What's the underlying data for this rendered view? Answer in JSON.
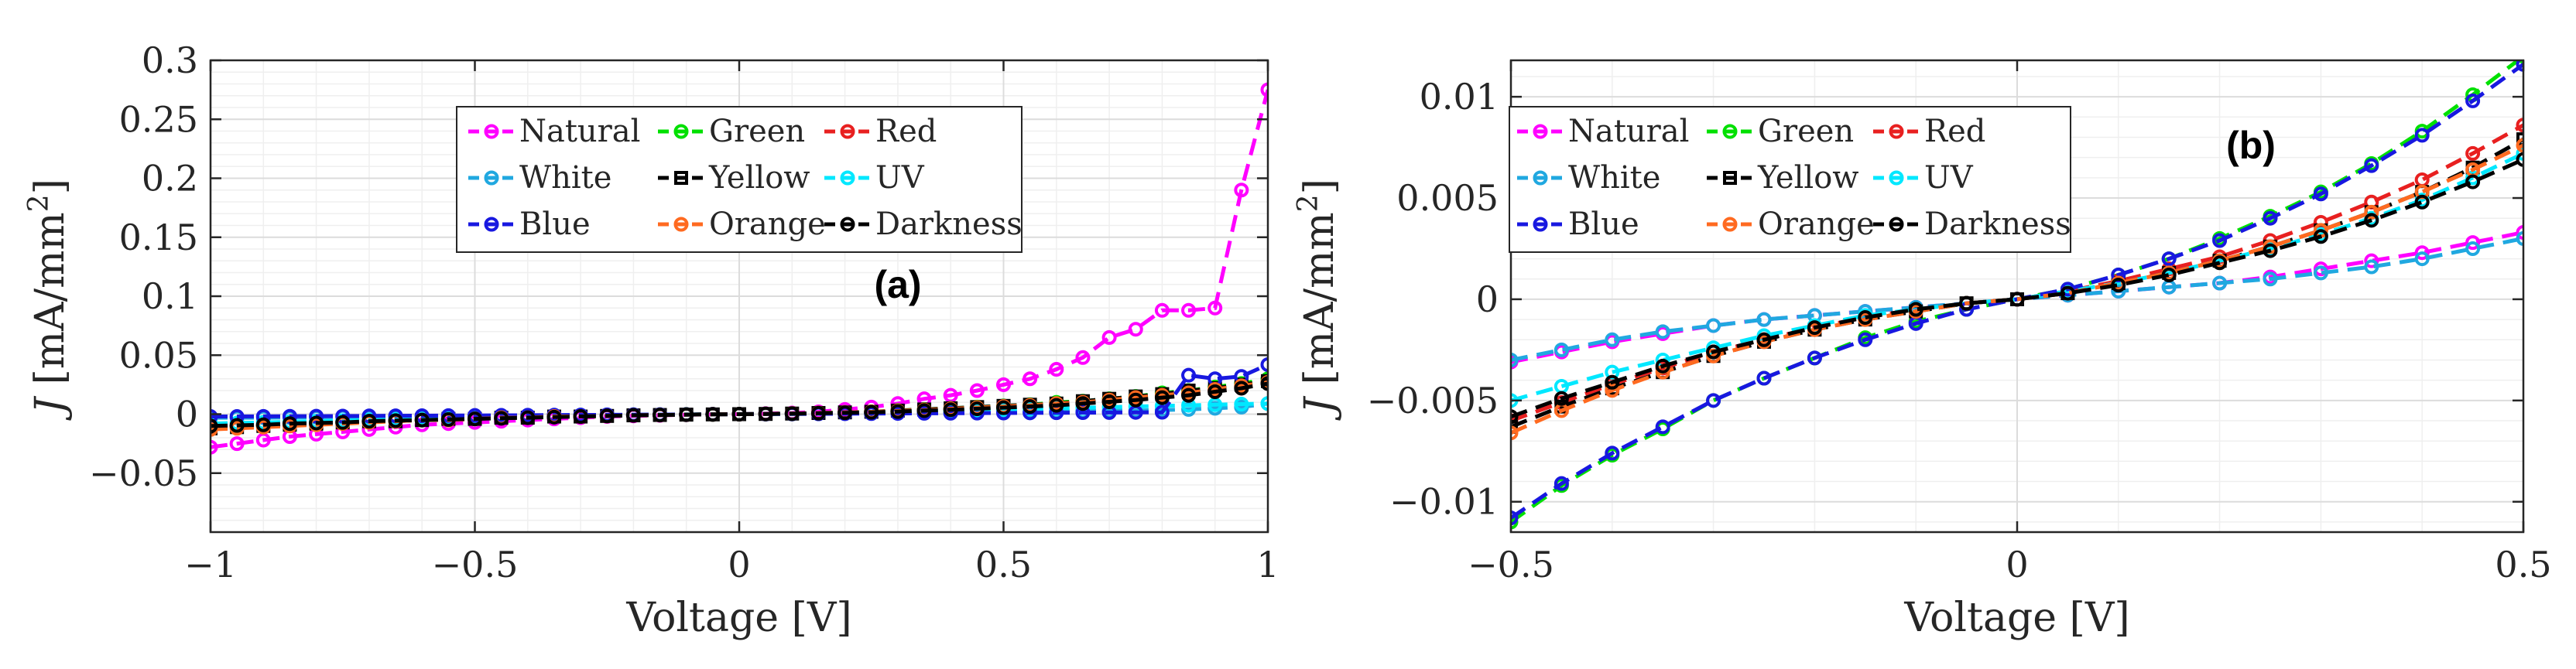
{
  "chart_data": [
    {
      "type": "line",
      "panel_label": "(a)",
      "xlabel": "Voltage [V]",
      "ylabel_italic": "J",
      "ylabel_unit": "[mA/mm",
      "ylabel_sup": "2",
      "ylabel_close": "]",
      "xlim": [
        -1,
        1
      ],
      "ylim": [
        -0.1,
        0.3
      ],
      "xticks": [
        -1,
        -0.5,
        0,
        0.5,
        1
      ],
      "xtick_labels": [
        "−1",
        "−0.5",
        "0",
        "0.5",
        "1"
      ],
      "yticks": [
        -0.05,
        0,
        0.05,
        0.1,
        0.15,
        0.2,
        0.25,
        0.3
      ],
      "ytick_labels": [
        "−0.05",
        "0",
        "0.05",
        "0.1",
        "0.15",
        "0.2",
        "0.25",
        "0.3"
      ],
      "grid": true,
      "legend_position": "top-center",
      "x": [
        -1,
        -0.95,
        -0.9,
        -0.85,
        -0.8,
        -0.75,
        -0.7,
        -0.65,
        -0.6,
        -0.55,
        -0.5,
        -0.45,
        -0.4,
        -0.35,
        -0.3,
        -0.25,
        -0.2,
        -0.15,
        -0.1,
        -0.05,
        0,
        0.05,
        0.1,
        0.15,
        0.2,
        0.25,
        0.3,
        0.35,
        0.4,
        0.45,
        0.5,
        0.55,
        0.6,
        0.65,
        0.7,
        0.75,
        0.8,
        0.85,
        0.9,
        0.95,
        1
      ],
      "series": [
        {
          "name": "Natural",
          "color": "#ff00ff",
          "marker": "circle",
          "values": [
            -0.028,
            -0.025,
            -0.022,
            -0.019,
            -0.017,
            -0.015,
            -0.013,
            -0.011,
            -0.009,
            -0.008,
            -0.007,
            -0.006,
            -0.005,
            -0.004,
            -0.003,
            -0.002,
            -0.0015,
            -0.001,
            -0.0005,
            -0.0002,
            0,
            0.0005,
            0.001,
            0.002,
            0.004,
            0.006,
            0.009,
            0.013,
            0.016,
            0.02,
            0.025,
            0.03,
            0.038,
            0.048,
            0.065,
            0.072,
            0.088,
            0.088,
            0.09,
            0.19,
            0.275
          ]
        },
        {
          "name": "Green",
          "color": "#00e000",
          "marker": "circle",
          "values": [
            -0.012,
            -0.011,
            -0.01,
            -0.009,
            -0.008,
            -0.007,
            -0.006,
            -0.005,
            -0.005,
            -0.004,
            -0.004,
            -0.003,
            -0.003,
            -0.002,
            -0.002,
            -0.0015,
            -0.001,
            -0.0007,
            -0.0004,
            -0.0002,
            0,
            0.0002,
            0.0005,
            0.001,
            0.0015,
            0.002,
            0.003,
            0.004,
            0.005,
            0.006,
            0.007,
            0.008,
            0.01,
            0.011,
            0.013,
            0.015,
            0.018,
            0.02,
            0.023,
            0.026,
            0.03
          ]
        },
        {
          "name": "Red",
          "color": "#e82020",
          "marker": "circle",
          "values": [
            -0.011,
            -0.01,
            -0.009,
            -0.008,
            -0.007,
            -0.006,
            -0.006,
            -0.005,
            -0.004,
            -0.004,
            -0.003,
            -0.003,
            -0.002,
            -0.002,
            -0.0015,
            -0.001,
            -0.0008,
            -0.0005,
            -0.0003,
            -0.0001,
            0,
            0.0002,
            0.0004,
            0.0008,
            0.0012,
            0.0018,
            0.0025,
            0.0032,
            0.004,
            0.005,
            0.006,
            0.007,
            0.008,
            0.01,
            0.011,
            0.013,
            0.015,
            0.017,
            0.02,
            0.023,
            0.027
          ]
        },
        {
          "name": "White",
          "color": "#20a8e0",
          "marker": "circle",
          "values": [
            -0.003,
            -0.003,
            -0.003,
            -0.0028,
            -0.0026,
            -0.0024,
            -0.0022,
            -0.002,
            -0.0018,
            -0.0016,
            -0.0014,
            -0.0012,
            -0.001,
            -0.0009,
            -0.0008,
            -0.0006,
            -0.0005,
            -0.0004,
            -0.0002,
            -0.0001,
            0,
            0.0001,
            0.0002,
            0.0004,
            0.0006,
            0.0008,
            0.001,
            0.0012,
            0.0014,
            0.0016,
            0.0018,
            0.002,
            0.0022,
            0.0025,
            0.0028,
            0.003,
            0.0035,
            0.004,
            0.005,
            0.006,
            0.009
          ]
        },
        {
          "name": "Yellow",
          "color": "#000000",
          "marker": "square",
          "values": [
            -0.012,
            -0.011,
            -0.01,
            -0.009,
            -0.008,
            -0.007,
            -0.006,
            -0.006,
            -0.005,
            -0.004,
            -0.004,
            -0.003,
            -0.003,
            -0.002,
            -0.002,
            -0.0015,
            -0.001,
            -0.0007,
            -0.0004,
            -0.0002,
            0,
            0.0002,
            0.0005,
            0.001,
            0.0015,
            0.002,
            0.003,
            0.004,
            0.005,
            0.006,
            0.007,
            0.008,
            0.009,
            0.011,
            0.013,
            0.015,
            0.017,
            0.02,
            0.022,
            0.025,
            0.028
          ]
        },
        {
          "name": "UV",
          "color": "#00e8ff",
          "marker": "circle",
          "values": [
            -0.008,
            -0.0075,
            -0.007,
            -0.0065,
            -0.006,
            -0.0055,
            -0.005,
            -0.0045,
            -0.004,
            -0.0035,
            -0.003,
            -0.0025,
            -0.002,
            -0.0018,
            -0.0015,
            -0.0012,
            -0.0009,
            -0.0006,
            -0.0004,
            -0.0002,
            0,
            0.0002,
            0.0004,
            0.0008,
            0.0012,
            0.0016,
            0.002,
            0.0025,
            0.003,
            0.0035,
            0.004,
            0.0045,
            0.005,
            0.0055,
            0.006,
            0.0065,
            0.007,
            0.0075,
            0.008,
            0.0085,
            0.009
          ]
        },
        {
          "name": "Blue",
          "color": "#1818e0",
          "marker": "circle",
          "values": [
            -0.002,
            -0.002,
            -0.0019,
            -0.0018,
            -0.0017,
            -0.0016,
            -0.0015,
            -0.0014,
            -0.0013,
            -0.0012,
            -0.0011,
            -0.001,
            -0.0009,
            -0.0008,
            -0.0007,
            -0.0006,
            -0.0005,
            -0.0004,
            -0.0003,
            -0.0001,
            0,
            0.0001,
            0.0002,
            0.0003,
            0.0004,
            0.0005,
            0.0006,
            0.0007,
            0.0008,
            0.0009,
            0.001,
            0.0011,
            0.0012,
            0.0013,
            0.0014,
            0.0015,
            0.0016,
            0.033,
            0.03,
            0.032,
            0.042
          ]
        },
        {
          "name": "Orange",
          "color": "#ff6a20",
          "marker": "circle",
          "values": [
            -0.013,
            -0.012,
            -0.011,
            -0.01,
            -0.009,
            -0.008,
            -0.007,
            -0.006,
            -0.005,
            -0.005,
            -0.004,
            -0.003,
            -0.003,
            -0.002,
            -0.002,
            -0.0015,
            -0.001,
            -0.0007,
            -0.0004,
            -0.0002,
            0,
            0.0002,
            0.0005,
            0.001,
            0.0014,
            0.002,
            0.0027,
            0.0035,
            0.0045,
            0.0055,
            0.0065,
            0.0075,
            0.009,
            0.01,
            0.012,
            0.014,
            0.016,
            0.018,
            0.021,
            0.024,
            0.027
          ]
        },
        {
          "name": "Darkness",
          "color": "#000000",
          "marker": "circle",
          "values": [
            -0.01,
            -0.0095,
            -0.009,
            -0.008,
            -0.0075,
            -0.007,
            -0.006,
            -0.0055,
            -0.005,
            -0.0045,
            -0.004,
            -0.0035,
            -0.003,
            -0.0025,
            -0.002,
            -0.0015,
            -0.001,
            -0.0007,
            -0.0004,
            -0.0002,
            0,
            0.0002,
            0.0004,
            0.0008,
            0.0012,
            0.0016,
            0.0022,
            0.003,
            0.0038,
            0.0046,
            0.0055,
            0.0065,
            0.0075,
            0.009,
            0.0105,
            0.012,
            0.014,
            0.016,
            0.019,
            0.022,
            0.026
          ]
        }
      ]
    },
    {
      "type": "line",
      "panel_label": "(b)",
      "xlabel": "Voltage [V]",
      "ylabel_italic": "J",
      "ylabel_unit": "[mA/mm",
      "ylabel_sup": "2",
      "ylabel_close": "]",
      "xlim": [
        -0.5,
        0.5
      ],
      "ylim": [
        -0.0115,
        0.0118
      ],
      "xticks": [
        -0.5,
        0,
        0.5
      ],
      "xtick_labels": [
        "−0.5",
        "0",
        "0.5"
      ],
      "yticks": [
        -0.01,
        -0.005,
        0,
        0.005,
        0.01
      ],
      "ytick_labels": [
        "−0.01",
        "−0.005",
        "0",
        "0.005",
        "0.01"
      ],
      "grid": true,
      "legend_position": "top-left",
      "x": [
        -0.5,
        -0.45,
        -0.4,
        -0.35,
        -0.3,
        -0.25,
        -0.2,
        -0.15,
        -0.1,
        -0.05,
        0,
        0.05,
        0.1,
        0.15,
        0.2,
        0.25,
        0.3,
        0.35,
        0.4,
        0.45,
        0.5
      ],
      "series": [
        {
          "name": "Natural",
          "color": "#ff00ff",
          "marker": "circle",
          "values": [
            -0.0031,
            -0.0026,
            -0.0021,
            -0.0017,
            -0.0013,
            -0.001,
            -0.0008,
            -0.0006,
            -0.0004,
            -0.0002,
            0,
            0.0002,
            0.0004,
            0.0006,
            0.0008,
            0.0011,
            0.0015,
            0.0019,
            0.0023,
            0.0028,
            0.0033
          ]
        },
        {
          "name": "Green",
          "color": "#00e000",
          "marker": "circle",
          "values": [
            -0.011,
            -0.0092,
            -0.0077,
            -0.0064,
            -0.005,
            -0.0039,
            -0.0029,
            -0.0019,
            -0.0011,
            -0.0005,
            0,
            0.0005,
            0.0012,
            0.002,
            0.003,
            0.0041,
            0.0053,
            0.0067,
            0.0083,
            0.0101,
            0.012
          ]
        },
        {
          "name": "Red",
          "color": "#e82020",
          "marker": "circle",
          "values": [
            -0.006,
            -0.0051,
            -0.0042,
            -0.0034,
            -0.0026,
            -0.002,
            -0.0014,
            -0.0009,
            -0.0005,
            -0.0002,
            0,
            0.0004,
            0.0009,
            0.0015,
            0.0021,
            0.0029,
            0.0038,
            0.0048,
            0.0059,
            0.0072,
            0.0086
          ]
        },
        {
          "name": "White",
          "color": "#20a8e0",
          "marker": "circle",
          "values": [
            -0.003,
            -0.0025,
            -0.002,
            -0.0016,
            -0.0013,
            -0.001,
            -0.0008,
            -0.0006,
            -0.0004,
            -0.0002,
            0,
            0.0002,
            0.0004,
            0.0006,
            0.0008,
            0.001,
            0.0013,
            0.0016,
            0.002,
            0.0025,
            0.003
          ]
        },
        {
          "name": "Yellow",
          "color": "#000000",
          "marker": "square",
          "values": [
            -0.0063,
            -0.0053,
            -0.0044,
            -0.0036,
            -0.0028,
            -0.0021,
            -0.0015,
            -0.001,
            -0.0006,
            -0.0002,
            0,
            0.0003,
            0.0008,
            0.0013,
            0.0019,
            0.0026,
            0.0034,
            0.0043,
            0.0053,
            0.0065,
            0.0079
          ]
        },
        {
          "name": "UV",
          "color": "#00e8ff",
          "marker": "circle",
          "values": [
            -0.005,
            -0.0043,
            -0.0036,
            -0.003,
            -0.0024,
            -0.0018,
            -0.0013,
            -0.0008,
            -0.0005,
            -0.0002,
            0,
            0.0004,
            0.0008,
            0.0013,
            0.0019,
            0.0025,
            0.0032,
            0.004,
            0.0049,
            0.006,
            0.0072
          ]
        },
        {
          "name": "Blue",
          "color": "#1818e0",
          "marker": "circle",
          "values": [
            -0.0108,
            -0.0091,
            -0.0076,
            -0.0063,
            -0.005,
            -0.0039,
            -0.0029,
            -0.002,
            -0.0012,
            -0.0005,
            0,
            0.0005,
            0.0012,
            0.002,
            0.0029,
            0.004,
            0.0052,
            0.0066,
            0.0081,
            0.0098,
            0.0116
          ]
        },
        {
          "name": "Orange",
          "color": "#ff6a20",
          "marker": "circle",
          "values": [
            -0.0066,
            -0.0055,
            -0.0045,
            -0.0036,
            -0.0028,
            -0.0021,
            -0.0015,
            -0.001,
            -0.0006,
            -0.0002,
            0,
            0.0003,
            0.0008,
            0.0013,
            0.0019,
            0.0026,
            0.0034,
            0.0043,
            0.0053,
            0.0064,
            0.0076
          ]
        },
        {
          "name": "Darkness",
          "color": "#000000",
          "marker": "circle",
          "values": [
            -0.0058,
            -0.0049,
            -0.0041,
            -0.0033,
            -0.0026,
            -0.002,
            -0.0014,
            -0.0009,
            -0.0005,
            -0.0002,
            0,
            0.0003,
            0.0007,
            0.0012,
            0.0018,
            0.0024,
            0.0031,
            0.0039,
            0.0048,
            0.0058,
            0.0069
          ]
        }
      ]
    }
  ]
}
